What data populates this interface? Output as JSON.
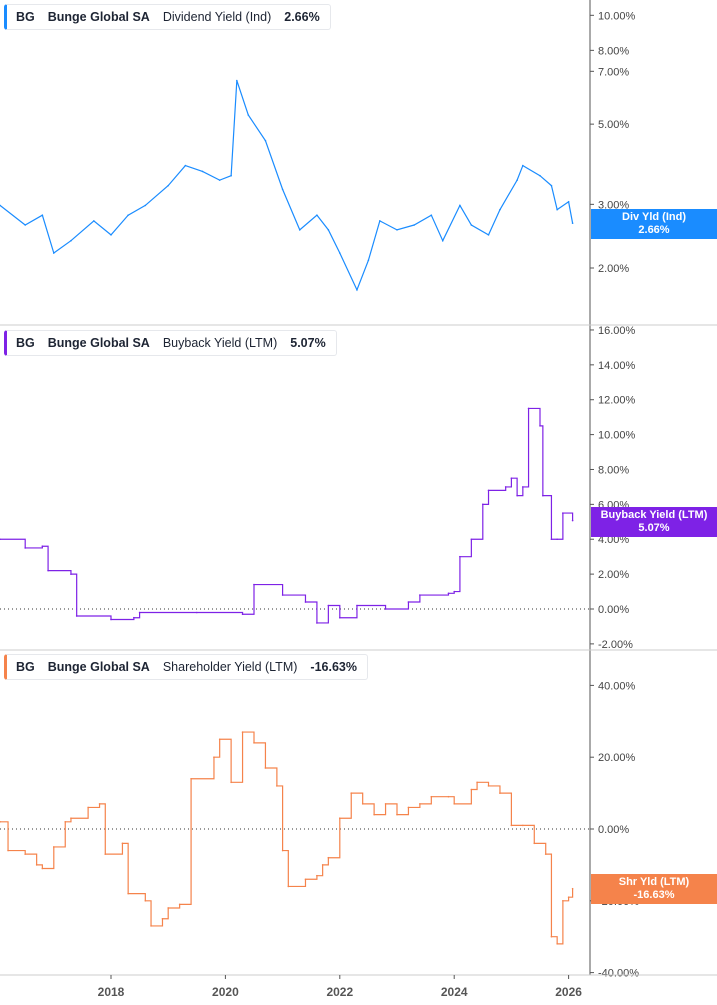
{
  "legends": [
    {
      "ticker": "BG",
      "company": "Bunge Global SA",
      "metric": "Dividend Yield (Ind)",
      "value": "2.66%"
    },
    {
      "ticker": "BG",
      "company": "Bunge Global SA",
      "metric": "Buyback Yield (LTM)",
      "value": "5.07%"
    },
    {
      "ticker": "BG",
      "company": "Bunge Global SA",
      "metric": "Shareholder Yield (LTM)",
      "value": "-16.63%"
    }
  ],
  "tags": [
    {
      "label": "Div Yld (Ind)",
      "value": "2.66%",
      "color": "#1a8cff"
    },
    {
      "label": "Buyback Yield (LTM)",
      "value": "5.07%",
      "color": "#7e22e6"
    },
    {
      "label": "Shr Yld (LTM)",
      "value": "-16.63%",
      "color": "#f5834b"
    }
  ],
  "chart_data": [
    {
      "type": "line",
      "scale": "log",
      "color": "#1a8cff",
      "ylim": [
        1.65,
        11
      ],
      "yticks": [
        "10.00%",
        "8.00%",
        "7.00%",
        "5.00%",
        "3.00%",
        "2.00%"
      ],
      "ytick_values": [
        10,
        8,
        7,
        5,
        3,
        2
      ],
      "x": [
        2016.06,
        2016.5,
        2016.8,
        2017.0,
        2017.3,
        2017.7,
        2018.0,
        2018.3,
        2018.6,
        2019.0,
        2019.3,
        2019.6,
        2019.9,
        2020.1,
        2020.2,
        2020.4,
        2020.7,
        2021.0,
        2021.3,
        2021.6,
        2021.8,
        2022.0,
        2022.3,
        2022.5,
        2022.7,
        2023.0,
        2023.3,
        2023.6,
        2023.8,
        2024.1,
        2024.3,
        2024.6,
        2024.8,
        2025.1,
        2025.2,
        2025.5,
        2025.7,
        2025.8,
        2026.0,
        2026.07
      ],
      "y": [
        2.98,
        2.63,
        2.8,
        2.2,
        2.38,
        2.7,
        2.47,
        2.8,
        2.98,
        3.38,
        3.84,
        3.7,
        3.5,
        3.6,
        6.6,
        5.3,
        4.5,
        3.3,
        2.55,
        2.8,
        2.55,
        2.2,
        1.74,
        2.1,
        2.7,
        2.55,
        2.63,
        2.8,
        2.38,
        2.98,
        2.63,
        2.47,
        2.9,
        3.5,
        3.84,
        3.6,
        3.38,
        2.9,
        3.05,
        2.66
      ]
    },
    {
      "type": "line",
      "scale": "linear",
      "color": "#7e22e6",
      "ylim": [
        -2.3,
        16.3
      ],
      "zero_line": true,
      "yticks": [
        "16.00%",
        "14.00%",
        "12.00%",
        "10.00%",
        "8.00%",
        "6.00%",
        "4.00%",
        "2.00%",
        "0.00%",
        "-2.00%"
      ],
      "ytick_values": [
        16,
        14,
        12,
        10,
        8,
        6,
        4,
        2,
        0,
        -2
      ],
      "x": [
        2016.06,
        2016.5,
        2016.8,
        2016.9,
        2017.3,
        2017.4,
        2018.0,
        2018.4,
        2018.5,
        2019.5,
        2020.3,
        2020.5,
        2021.0,
        2021.4,
        2021.6,
        2021.8,
        2022.0,
        2022.3,
        2022.8,
        2023.2,
        2023.4,
        2023.9,
        2024.0,
        2024.1,
        2024.3,
        2024.5,
        2024.6,
        2024.9,
        2025.0,
        2025.1,
        2025.2,
        2025.3,
        2025.5,
        2025.55,
        2025.7,
        2025.8,
        2025.9,
        2026.07
      ],
      "y": [
        4.0,
        3.5,
        3.6,
        2.2,
        2.0,
        -0.4,
        -0.6,
        -0.5,
        -0.2,
        -0.2,
        -0.3,
        1.4,
        0.8,
        0.4,
        -0.8,
        0.2,
        -0.5,
        0.2,
        0,
        0.4,
        0.8,
        0.9,
        1.0,
        3.0,
        4.0,
        6.0,
        6.8,
        7.0,
        7.5,
        6.5,
        7.0,
        11.5,
        10.5,
        6.5,
        4.0,
        4.0,
        5.5,
        5.07
      ]
    },
    {
      "type": "line",
      "scale": "linear",
      "color": "#f5834b",
      "ylim": [
        -40.5,
        42
      ],
      "zero_line": true,
      "yticks": [
        "40.00%",
        "20.00%",
        "0.00%",
        "-20.00%",
        "-40.00%"
      ],
      "ytick_values": [
        40,
        20,
        0,
        -20,
        -40
      ],
      "xticks": [
        "2018",
        "2020",
        "2022",
        "2024",
        "2026"
      ],
      "xtick_values": [
        2018,
        2020,
        2022,
        2024,
        2026
      ],
      "x": [
        2016.06,
        2016.2,
        2016.5,
        2016.7,
        2016.8,
        2017.0,
        2017.2,
        2017.3,
        2017.6,
        2017.8,
        2017.9,
        2018.2,
        2018.3,
        2018.6,
        2018.7,
        2018.9,
        2019.0,
        2019.2,
        2019.4,
        2019.8,
        2019.9,
        2020.1,
        2020.3,
        2020.5,
        2020.7,
        2020.9,
        2021.0,
        2021.1,
        2021.4,
        2021.6,
        2021.7,
        2021.8,
        2022.0,
        2022.2,
        2022.4,
        2022.6,
        2022.8,
        2023.0,
        2023.2,
        2023.4,
        2023.6,
        2023.9,
        2024.0,
        2024.3,
        2024.4,
        2024.6,
        2024.8,
        2025.0,
        2025.2,
        2025.4,
        2025.6,
        2025.7,
        2025.8,
        2025.9,
        2026.0,
        2026.07
      ],
      "y": [
        2,
        -6,
        -7,
        -10,
        -11,
        -5,
        2,
        3,
        6,
        7,
        -7,
        -4,
        -18,
        -20,
        -27,
        -25,
        -22,
        -21,
        14,
        20,
        25,
        13,
        27,
        24,
        17,
        12,
        -6,
        -16,
        -14,
        -13,
        -10,
        -8,
        3,
        10,
        7,
        4,
        7,
        4,
        6,
        7,
        9,
        9,
        7,
        11,
        13,
        12,
        10,
        1,
        1,
        -4,
        -7,
        -30,
        -32,
        -20,
        -19,
        -16.63
      ]
    }
  ]
}
